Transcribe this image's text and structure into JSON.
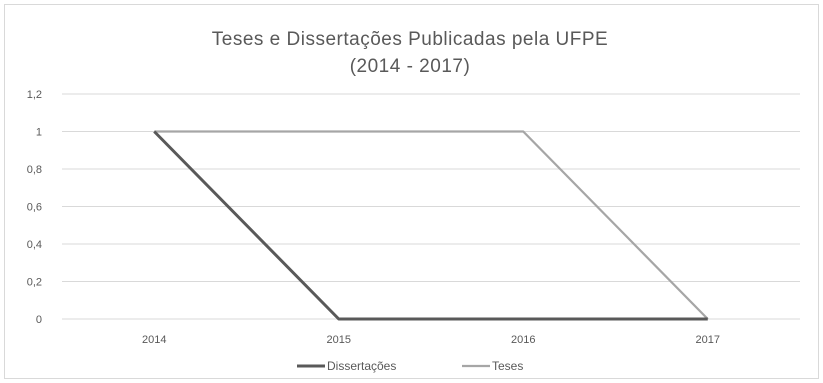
{
  "chart_data": {
    "type": "line",
    "title": "Teses e Dissertações Publicadas pela UFPE",
    "subtitle": "(2014 - 2017)",
    "categories": [
      "2014",
      "2015",
      "2016",
      "2017"
    ],
    "series": [
      {
        "name": "Dissertações",
        "values": [
          1,
          0,
          0,
          0
        ],
        "color": "#595959"
      },
      {
        "name": "Teses",
        "values": [
          1,
          1,
          1,
          0
        ],
        "color": "#a6a6a6"
      }
    ],
    "ylim": [
      0,
      1.2
    ],
    "yticks": [
      "0",
      "0,2",
      "0,4",
      "0,6",
      "0,8",
      "1",
      "1,2"
    ],
    "xlabel": "",
    "ylabel": "",
    "grid": true,
    "legend_position": "bottom"
  }
}
